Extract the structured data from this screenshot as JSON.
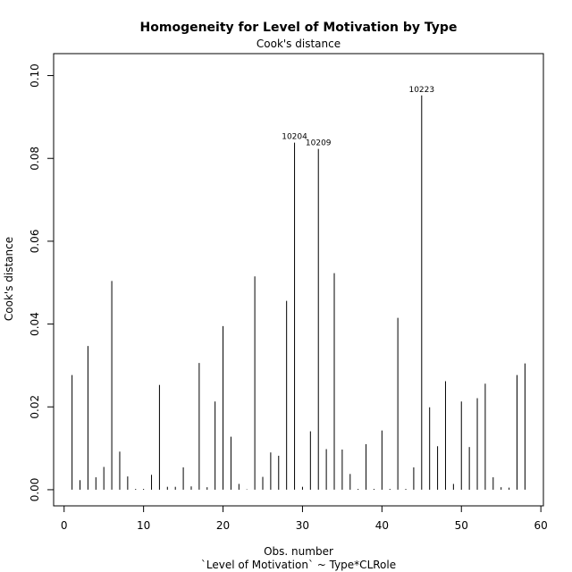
{
  "chart_data": {
    "type": "bar",
    "title": "Homogeneity for Level of Motivation by Type",
    "subtitle": "Cook's distance",
    "xlabel": "Obs. number",
    "xlabel2": "`Level of Motivation` ~ Type*CLRole",
    "ylabel": "Cook's distance",
    "xlim": [
      -1.32,
      60.32
    ],
    "ylim": [
      -0.0039,
      0.1053
    ],
    "xticks": [
      0,
      10,
      20,
      30,
      40,
      50,
      60
    ],
    "xtick_labels": [
      "0",
      "10",
      "20",
      "30",
      "40",
      "50",
      "60"
    ],
    "yticks": [
      0.0,
      0.02,
      0.04,
      0.06,
      0.08,
      0.1
    ],
    "ytick_labels": [
      "0.00",
      "0.02",
      "0.04",
      "0.06",
      "0.08",
      "0.10"
    ],
    "x": [
      1,
      2,
      3,
      4,
      5,
      6,
      7,
      8,
      9,
      10,
      11,
      12,
      13,
      14,
      15,
      16,
      17,
      18,
      19,
      20,
      21,
      22,
      23,
      24,
      25,
      26,
      27,
      28,
      29,
      30,
      31,
      32,
      33,
      34,
      35,
      36,
      37,
      38,
      39,
      40,
      41,
      42,
      43,
      44,
      45,
      46,
      47,
      48,
      49,
      50,
      51,
      52,
      53,
      54,
      55,
      56,
      57,
      58
    ],
    "values": [
      0.0277,
      0.0023,
      0.0347,
      0.003,
      0.0055,
      0.0504,
      0.0092,
      0.0032,
      0.0002,
      0.0002,
      0.0036,
      0.0253,
      0.0007,
      0.0007,
      0.0054,
      0.0008,
      0.0306,
      0.0006,
      0.0213,
      0.0395,
      0.0128,
      0.0014,
      0.0001,
      0.0515,
      0.0031,
      0.009,
      0.0082,
      0.0456,
      0.0838,
      0.0007,
      0.0141,
      0.0823,
      0.0098,
      0.0523,
      0.0097,
      0.0038,
      0.0002,
      0.011,
      0.0002,
      0.0143,
      0.0002,
      0.0415,
      0.0002,
      0.0054,
      0.0952,
      0.0199,
      0.0105,
      0.0262,
      0.0014,
      0.0213,
      0.0103,
      0.0221,
      0.0256,
      0.003,
      0.0006,
      0.0005,
      0.0277,
      0.0305
    ],
    "annotations": [
      {
        "index": 29,
        "label": "10204"
      },
      {
        "index": 32,
        "label": "10209"
      },
      {
        "index": 45,
        "label": "10223"
      }
    ],
    "grid": false
  }
}
